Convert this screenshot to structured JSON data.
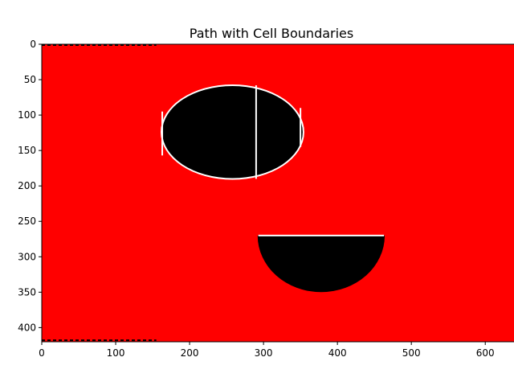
{
  "chart_data": {
    "type": "heatmap",
    "title": "Path with Cell Boundaries",
    "xlabel": "",
    "ylabel": "",
    "xlim": [
      0,
      653
    ],
    "ylim": [
      420,
      0
    ],
    "y_inverted": true,
    "grid": false,
    "legend": "none",
    "x_ticks": [
      0,
      100,
      200,
      300,
      400,
      500,
      600
    ],
    "y_ticks": [
      0,
      50,
      100,
      150,
      200,
      250,
      300,
      350,
      400
    ],
    "colors": {
      "free_space": "#ff0000",
      "obstacle": "#000000",
      "cell_boundary": "#ffffff"
    },
    "regions": [
      {
        "kind": "free_space",
        "x_range": [
          0,
          653
        ],
        "y_range": [
          0,
          420
        ]
      },
      {
        "kind": "obstacle",
        "shape": "ellipse",
        "center": [
          258,
          124
        ],
        "radii": [
          95,
          65
        ]
      },
      {
        "kind": "obstacle",
        "shape": "half-ellipse",
        "center": [
          378,
          270
        ],
        "radii": [
          86,
          80
        ]
      },
      {
        "kind": "cell_boundary",
        "orientation": "vertical",
        "x": 290,
        "y_range": [
          58,
          190
        ]
      },
      {
        "kind": "cell_boundary",
        "orientation": "vertical",
        "x": 163,
        "y_range": [
          95,
          157
        ]
      },
      {
        "kind": "cell_boundary",
        "orientation": "vertical",
        "x": 350,
        "y_range": [
          90,
          145
        ]
      },
      {
        "kind": "cell_boundary",
        "orientation": "horizontal",
        "y": 270,
        "x_range": [
          293,
          463
        ]
      }
    ],
    "edge_dashes": [
      {
        "y": 0,
        "x_range": [
          0,
          155
        ]
      },
      {
        "y": 419,
        "x_range": [
          0,
          155
        ]
      }
    ]
  }
}
